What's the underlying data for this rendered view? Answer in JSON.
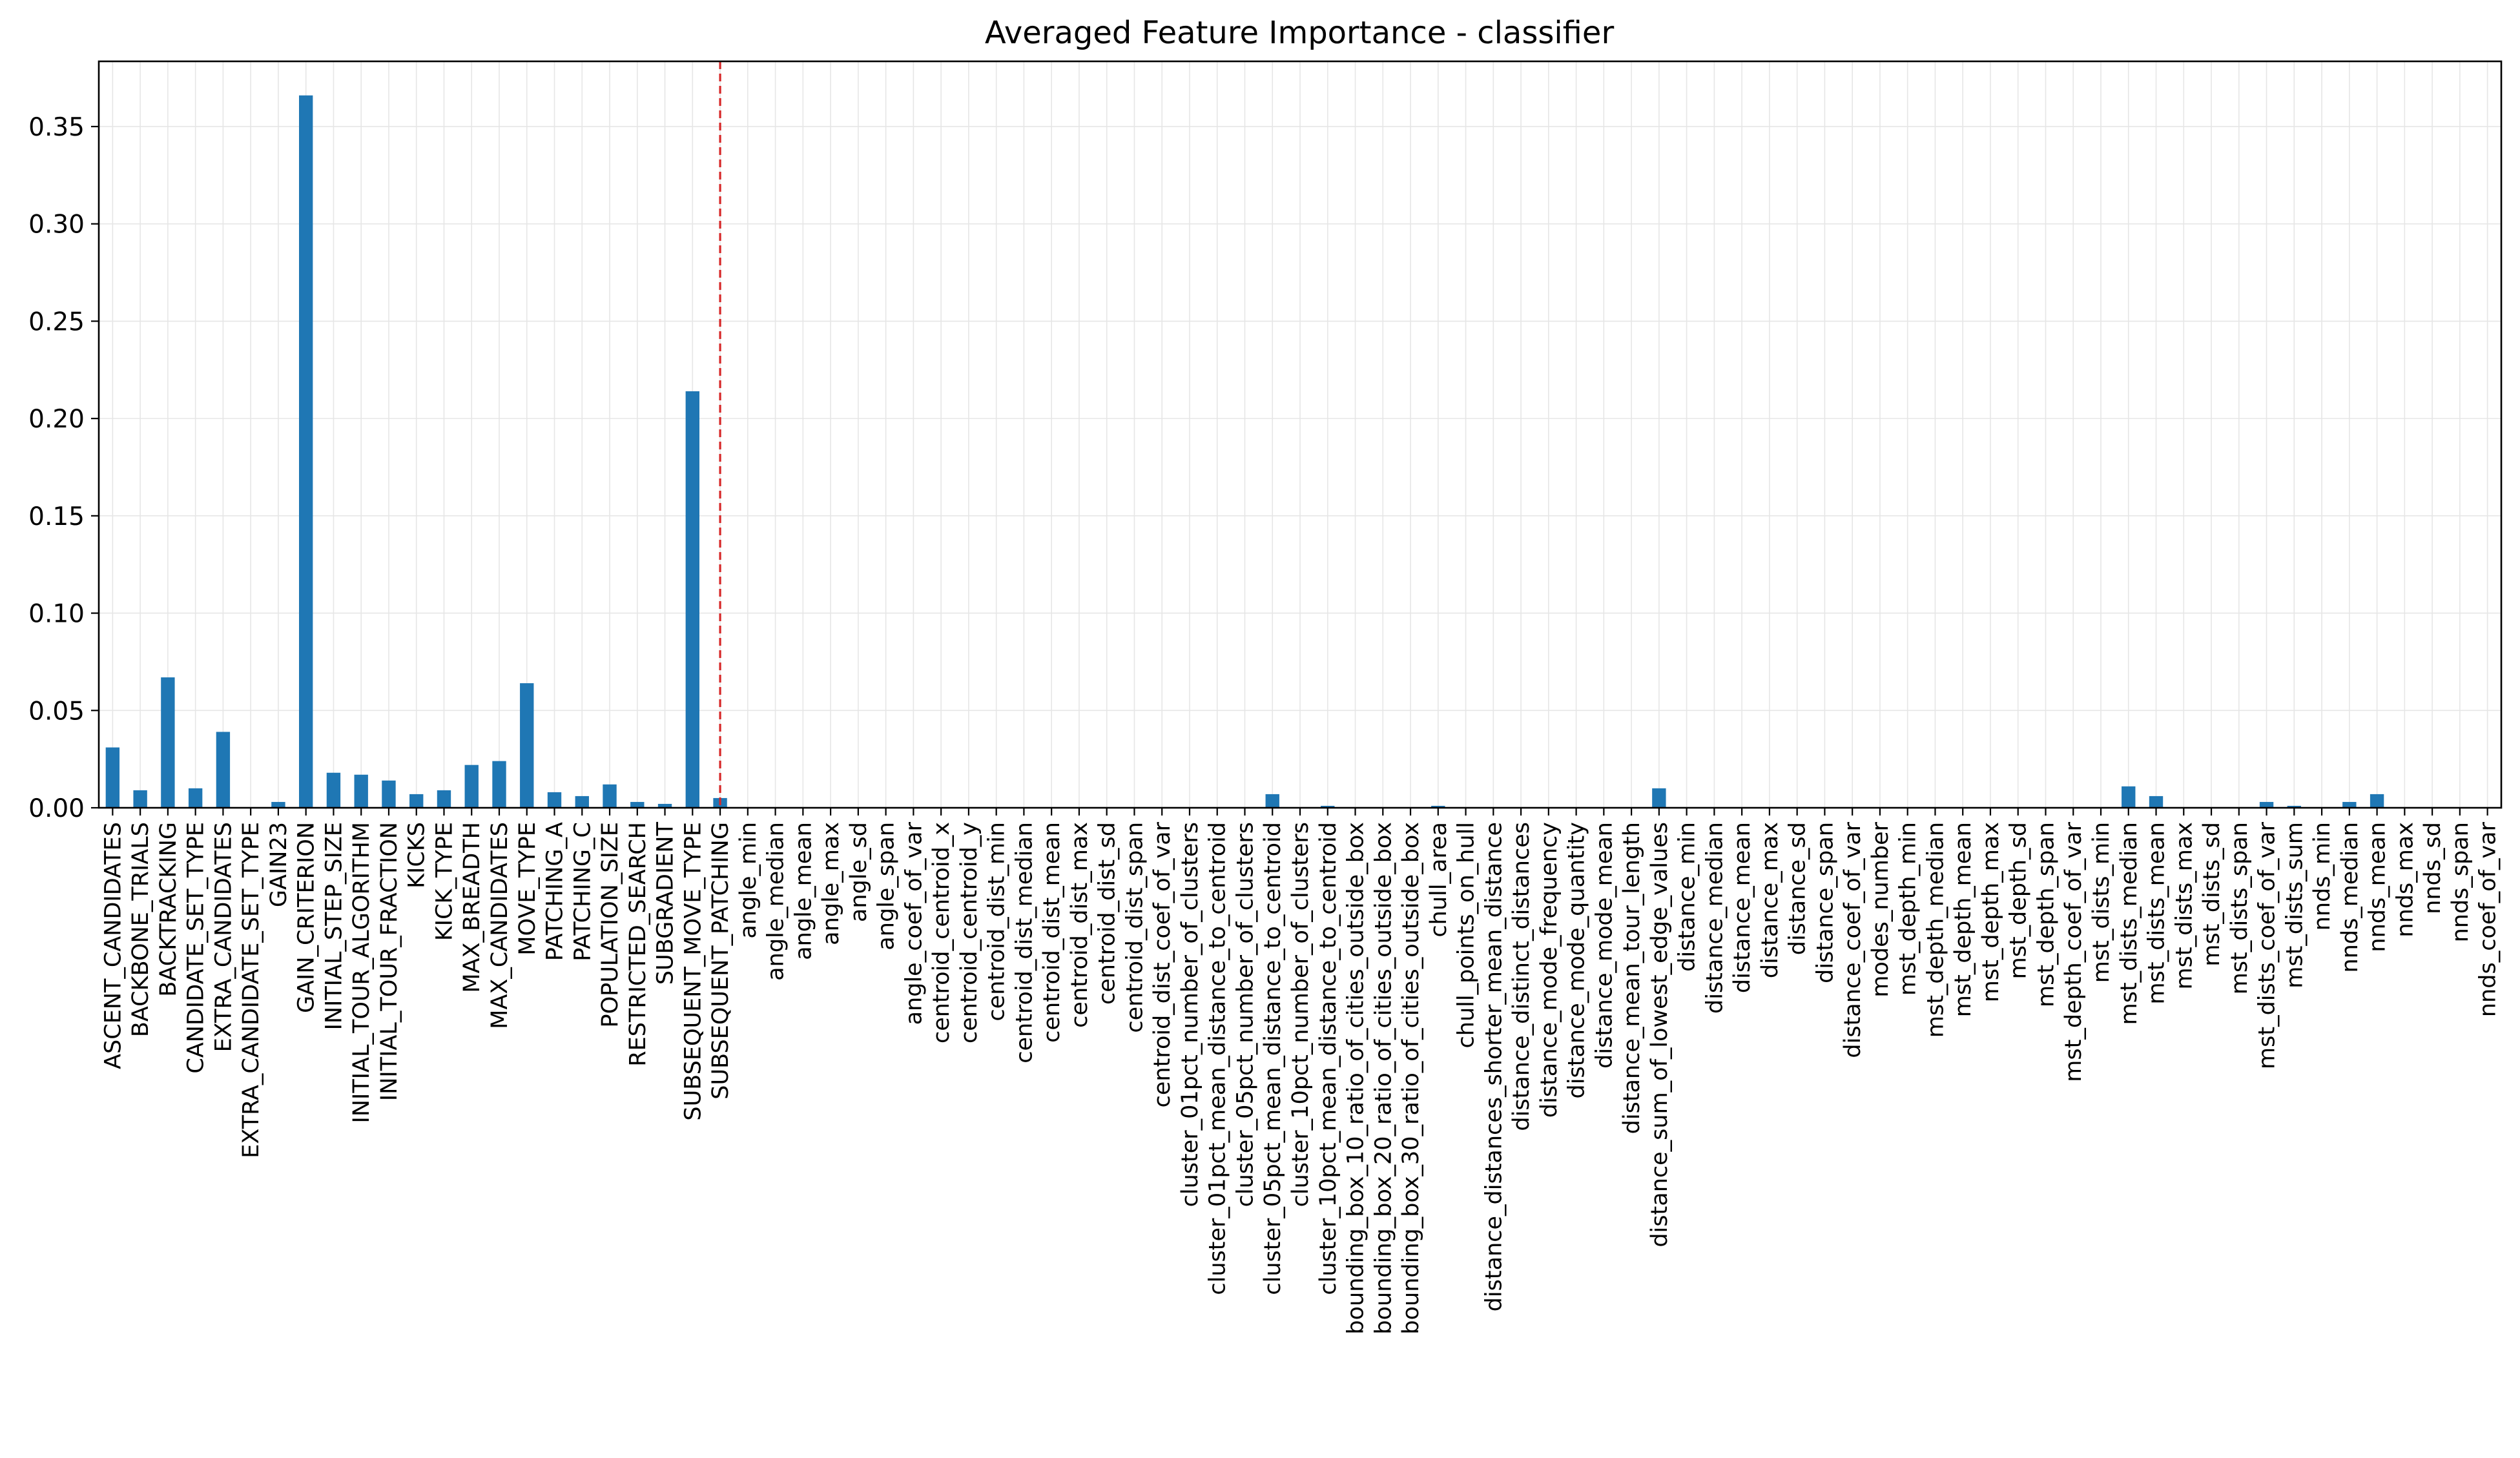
{
  "chart_data": {
    "type": "bar",
    "title": "Averaged Feature Importance - classifier",
    "xlabel": "",
    "ylabel": "",
    "ylim": [
      0,
      0.3835
    ],
    "yticks": [
      0.0,
      0.05,
      0.1,
      0.15,
      0.2,
      0.25,
      0.3,
      0.35
    ],
    "ytick_labels": [
      "0.00",
      "0.05",
      "0.10",
      "0.15",
      "0.20",
      "0.25",
      "0.30",
      "0.35"
    ],
    "grid": true,
    "bar_color": "#1f77b4",
    "reference_line": {
      "after_category_index": 22,
      "color": "#d62728",
      "style": "dashed"
    },
    "categories": [
      "ASCENT_CANDIDATES",
      "BACKBONE_TRIALS",
      "BACKTRACKING",
      "CANDIDATE_SET_TYPE",
      "EXTRA_CANDIDATES",
      "EXTRA_CANDIDATE_SET_TYPE",
      "GAIN23",
      "GAIN_CRITERION",
      "INITIAL_STEP_SIZE",
      "INITIAL_TOUR_ALGORITHM",
      "INITIAL_TOUR_FRACTION",
      "KICKS",
      "KICK_TYPE",
      "MAX_BREADTH",
      "MAX_CANDIDATES",
      "MOVE_TYPE",
      "PATCHING_A",
      "PATCHING_C",
      "POPULATION_SIZE",
      "RESTRICTED_SEARCH",
      "SUBGRADIENT",
      "SUBSEQUENT_MOVE_TYPE",
      "SUBSEQUENT_PATCHING",
      "angle_min",
      "angle_median",
      "angle_mean",
      "angle_max",
      "angle_sd",
      "angle_span",
      "angle_coef_of_var",
      "centroid_centroid_x",
      "centroid_centroid_y",
      "centroid_dist_min",
      "centroid_dist_median",
      "centroid_dist_mean",
      "centroid_dist_max",
      "centroid_dist_sd",
      "centroid_dist_span",
      "centroid_dist_coef_of_var",
      "cluster_01pct_number_of_clusters",
      "cluster_01pct_mean_distance_to_centroid",
      "cluster_05pct_number_of_clusters",
      "cluster_05pct_mean_distance_to_centroid",
      "cluster_10pct_number_of_clusters",
      "cluster_10pct_mean_distance_to_centroid",
      "bounding_box_10_ratio_of_cities_outside_box",
      "bounding_box_20_ratio_of_cities_outside_box",
      "bounding_box_30_ratio_of_cities_outside_box",
      "chull_area",
      "chull_points_on_hull",
      "distance_distances_shorter_mean_distance",
      "distance_distinct_distances",
      "distance_mode_frequency",
      "distance_mode_quantity",
      "distance_mode_mean",
      "distance_mean_tour_length",
      "distance_sum_of_lowest_edge_values",
      "distance_min",
      "distance_median",
      "distance_mean",
      "distance_max",
      "distance_sd",
      "distance_span",
      "distance_coef_of_var",
      "modes_number",
      "mst_depth_min",
      "mst_depth_median",
      "mst_depth_mean",
      "mst_depth_max",
      "mst_depth_sd",
      "mst_depth_span",
      "mst_depth_coef_of_var",
      "mst_dists_min",
      "mst_dists_median",
      "mst_dists_mean",
      "mst_dists_max",
      "mst_dists_sd",
      "mst_dists_span",
      "mst_dists_coef_of_var",
      "mst_dists_sum",
      "nnds_min",
      "nnds_median",
      "nnds_mean",
      "nnds_max",
      "nnds_sd",
      "nnds_span",
      "nnds_coef_of_var"
    ],
    "values": [
      0.031,
      0.009,
      0.067,
      0.01,
      0.039,
      0.0,
      0.003,
      0.366,
      0.018,
      0.017,
      0.014,
      0.007,
      0.009,
      0.022,
      0.024,
      0.064,
      0.008,
      0.006,
      0.012,
      0.003,
      0.002,
      0.214,
      0.005,
      0.0,
      0.0,
      0.0,
      0.0,
      0.0,
      0.0,
      0.0,
      0.0,
      0.0,
      0.0,
      0.0,
      0.0,
      0.0,
      0.0,
      0.0,
      0.0,
      0.0,
      0.0,
      0.0,
      0.007,
      0.0,
      0.001,
      0.0,
      0.0,
      0.0,
      0.001,
      0.0,
      0.0,
      0.0,
      0.0,
      0.0,
      0.0,
      0.0,
      0.01,
      0.0,
      0.0,
      0.0,
      0.0,
      0.0,
      0.0,
      0.0,
      0.0,
      0.0,
      0.0,
      0.0,
      0.0,
      0.0,
      0.0,
      0.0,
      0.0,
      0.011,
      0.006,
      0.0,
      0.0,
      0.0,
      0.003,
      0.001,
      0.0,
      0.003,
      0.007,
      0.0,
      0.0,
      0.0,
      0.0
    ]
  }
}
